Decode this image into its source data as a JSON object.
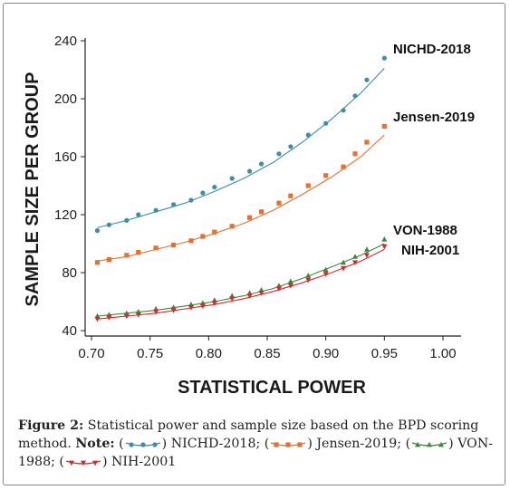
{
  "chart_data": {
    "type": "scatter",
    "xlabel": "STATISTICAL POWER",
    "ylabel": "SAMPLE SIZE PER GROUP",
    "xlim": [
      0.7,
      1.0
    ],
    "ylim": [
      40,
      240
    ],
    "x_ticks": [
      "0.70",
      "0.75",
      "0.80",
      "0.85",
      "0.90",
      "0.95",
      "1.00"
    ],
    "y_ticks": [
      "40",
      "80",
      "120",
      "160",
      "200",
      "240"
    ],
    "grid": false,
    "series": [
      {
        "name": "NICHD-2018",
        "color": "#3d8ea8",
        "marker": "circle",
        "points": [
          [
            0.705,
            109
          ],
          [
            0.715,
            113
          ],
          [
            0.73,
            116
          ],
          [
            0.74,
            120
          ],
          [
            0.755,
            123
          ],
          [
            0.77,
            127
          ],
          [
            0.785,
            130
          ],
          [
            0.795,
            135
          ],
          [
            0.805,
            139
          ],
          [
            0.82,
            145
          ],
          [
            0.835,
            150
          ],
          [
            0.845,
            155
          ],
          [
            0.86,
            162
          ],
          [
            0.87,
            167
          ],
          [
            0.885,
            175
          ],
          [
            0.9,
            183
          ],
          [
            0.915,
            192
          ],
          [
            0.925,
            202
          ],
          [
            0.935,
            213
          ],
          [
            0.95,
            228
          ]
        ],
        "fit": [
          [
            0.705,
            111
          ],
          [
            0.73,
            116
          ],
          [
            0.755,
            122
          ],
          [
            0.78,
            128
          ],
          [
            0.805,
            136
          ],
          [
            0.83,
            145
          ],
          [
            0.855,
            156
          ],
          [
            0.88,
            170
          ],
          [
            0.905,
            186
          ],
          [
            0.93,
            204
          ],
          [
            0.95,
            221
          ]
        ]
      },
      {
        "name": "Jensen-2019",
        "color": "#e8702a",
        "marker": "square",
        "points": [
          [
            0.705,
            87
          ],
          [
            0.715,
            89
          ],
          [
            0.73,
            92
          ],
          [
            0.74,
            94
          ],
          [
            0.755,
            97
          ],
          [
            0.77,
            99
          ],
          [
            0.785,
            102
          ],
          [
            0.795,
            105
          ],
          [
            0.805,
            108
          ],
          [
            0.82,
            112
          ],
          [
            0.835,
            118
          ],
          [
            0.845,
            122
          ],
          [
            0.86,
            128
          ],
          [
            0.87,
            133
          ],
          [
            0.885,
            140
          ],
          [
            0.9,
            147
          ],
          [
            0.915,
            153
          ],
          [
            0.925,
            162
          ],
          [
            0.935,
            170
          ],
          [
            0.95,
            181
          ]
        ],
        "fit": [
          [
            0.705,
            88
          ],
          [
            0.73,
            91
          ],
          [
            0.755,
            96
          ],
          [
            0.78,
            101
          ],
          [
            0.805,
            107
          ],
          [
            0.83,
            114
          ],
          [
            0.855,
            123
          ],
          [
            0.88,
            134
          ],
          [
            0.905,
            146
          ],
          [
            0.93,
            160
          ],
          [
            0.95,
            175
          ]
        ]
      },
      {
        "name": "VON-1988",
        "color": "#3a8a3a",
        "marker": "triangle",
        "points": [
          [
            0.705,
            50
          ],
          [
            0.715,
            51
          ],
          [
            0.73,
            52
          ],
          [
            0.74,
            53
          ],
          [
            0.755,
            55
          ],
          [
            0.77,
            56
          ],
          [
            0.785,
            58
          ],
          [
            0.795,
            59
          ],
          [
            0.805,
            61
          ],
          [
            0.82,
            64
          ],
          [
            0.835,
            66
          ],
          [
            0.845,
            68
          ],
          [
            0.86,
            71
          ],
          [
            0.87,
            74
          ],
          [
            0.885,
            78
          ],
          [
            0.9,
            82
          ],
          [
            0.915,
            87
          ],
          [
            0.925,
            91
          ],
          [
            0.935,
            96
          ],
          [
            0.95,
            103
          ]
        ],
        "fit": [
          [
            0.705,
            50
          ],
          [
            0.73,
            52
          ],
          [
            0.755,
            54
          ],
          [
            0.78,
            57
          ],
          [
            0.805,
            60
          ],
          [
            0.83,
            64
          ],
          [
            0.855,
            69
          ],
          [
            0.88,
            76
          ],
          [
            0.905,
            84
          ],
          [
            0.93,
            92
          ],
          [
            0.95,
            100
          ]
        ]
      },
      {
        "name": "NIH-2001",
        "color": "#d8282a",
        "marker": "triangle-down",
        "points": [
          [
            0.705,
            48
          ],
          [
            0.715,
            49
          ],
          [
            0.73,
            50
          ],
          [
            0.74,
            51
          ],
          [
            0.755,
            53
          ],
          [
            0.77,
            54
          ],
          [
            0.785,
            56
          ],
          [
            0.795,
            57
          ],
          [
            0.805,
            59
          ],
          [
            0.82,
            62
          ],
          [
            0.835,
            64
          ],
          [
            0.845,
            66
          ],
          [
            0.86,
            69
          ],
          [
            0.87,
            71
          ],
          [
            0.885,
            75
          ],
          [
            0.9,
            79
          ],
          [
            0.915,
            83
          ],
          [
            0.925,
            87
          ],
          [
            0.935,
            92
          ],
          [
            0.95,
            98
          ]
        ],
        "fit": [
          [
            0.705,
            48
          ],
          [
            0.73,
            50
          ],
          [
            0.755,
            52
          ],
          [
            0.78,
            55
          ],
          [
            0.805,
            58
          ],
          [
            0.83,
            62
          ],
          [
            0.855,
            67
          ],
          [
            0.88,
            73
          ],
          [
            0.905,
            80
          ],
          [
            0.93,
            88
          ],
          [
            0.95,
            96
          ]
        ]
      }
    ]
  },
  "caption": {
    "label": "Figure 2:",
    "text": "Statistical power and sample size based on the BPD scoring method.",
    "note_label": "Note:",
    "items": [
      {
        "paren_open": "(",
        "paren_close": ")",
        "label": "NICHD-2018;"
      },
      {
        "paren_open": "(",
        "paren_close": ")",
        "label": "Jensen-2019;"
      },
      {
        "paren_open": "(",
        "paren_close": ")",
        "label": "VON-1988;"
      },
      {
        "paren_open": "(",
        "paren_close": ")",
        "label": "NIH-2001"
      }
    ]
  }
}
